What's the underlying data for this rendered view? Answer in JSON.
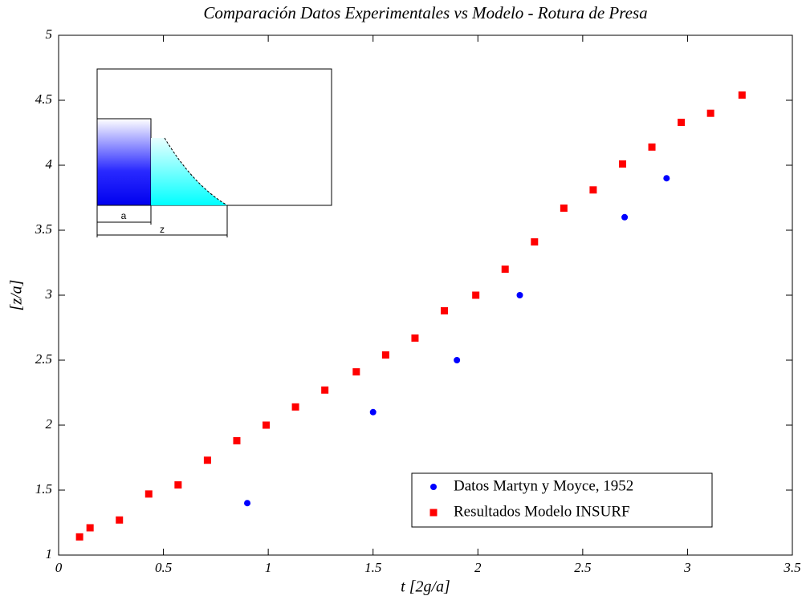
{
  "chart_data": {
    "type": "scatter",
    "title": "Comparación Datos Experimentales vs Modelo - Rotura de Presa",
    "x_label": "t [2g/a]",
    "y_label": "[z/a]",
    "xlim": [
      0,
      3.5
    ],
    "ylim": [
      1,
      5
    ],
    "xticks": [
      0,
      0.5,
      1,
      1.5,
      2,
      2.5,
      3,
      3.5
    ],
    "yticks": [
      1,
      1.5,
      2,
      2.5,
      3,
      3.5,
      4,
      4.5,
      5
    ],
    "legend": "lower right",
    "inset_labels": [
      "a",
      "z"
    ],
    "series": [
      {
        "name": "Datos Martyn y Moyce, 1952",
        "color": "#0000ff",
        "marker": "circle",
        "x": [
          0.9,
          1.5,
          1.9,
          2.2,
          2.7,
          2.9
        ],
        "values": [
          1.4,
          2.1,
          2.5,
          3.0,
          3.6,
          3.9
        ]
      },
      {
        "name": "Resultados Modelo INSURF",
        "color": "#ff0000",
        "marker": "square",
        "x": [
          0.1,
          0.15,
          0.29,
          0.43,
          0.57,
          0.71,
          0.85,
          0.99,
          1.13,
          1.27,
          1.42,
          1.56,
          1.7,
          1.84,
          1.99,
          2.13,
          2.27,
          2.41,
          2.55,
          2.69,
          2.83,
          2.97,
          3.11,
          3.26
        ],
        "values": [
          1.14,
          1.21,
          1.27,
          1.47,
          1.54,
          1.73,
          1.88,
          2.0,
          2.14,
          2.27,
          2.41,
          2.54,
          2.67,
          2.88,
          3.0,
          3.2,
          3.41,
          3.67,
          3.81,
          4.01,
          4.14,
          4.33,
          4.4,
          4.54
        ]
      }
    ]
  }
}
